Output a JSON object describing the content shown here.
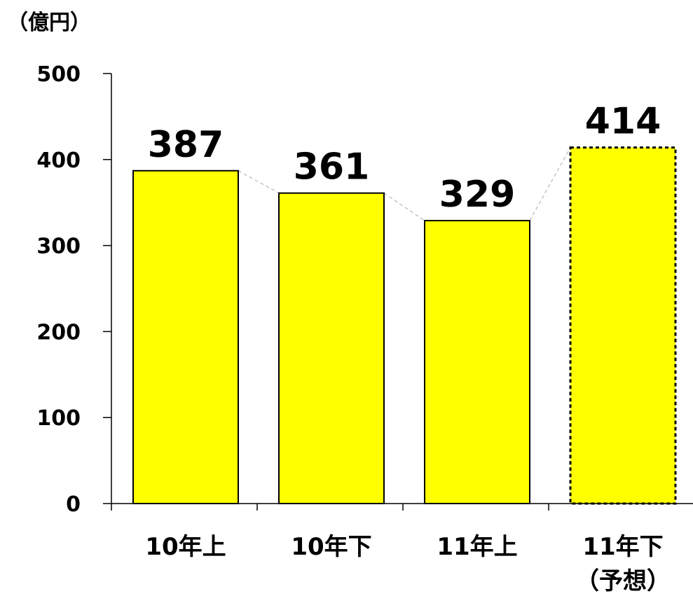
{
  "chart_data": {
    "type": "bar",
    "unit_label": "（億円）",
    "categories": [
      "10年上",
      "10年下",
      "11年上",
      "11年下"
    ],
    "category_sublabels": [
      "",
      "",
      "",
      "（予想）"
    ],
    "values": [
      387,
      361,
      329,
      414
    ],
    "data_labels": [
      "387",
      "361",
      "329",
      "414"
    ],
    "forecast": [
      false,
      false,
      false,
      true
    ],
    "yticks": [
      "0",
      "100",
      "200",
      "300",
      "400",
      "500"
    ],
    "ylim": [
      0,
      500
    ],
    "grid": false,
    "connector_lines": true,
    "colors": {
      "bar_fill": "#ffff00",
      "bar_stroke": "#000000",
      "connector": "#aaaaaa",
      "axis": "#000000"
    }
  }
}
